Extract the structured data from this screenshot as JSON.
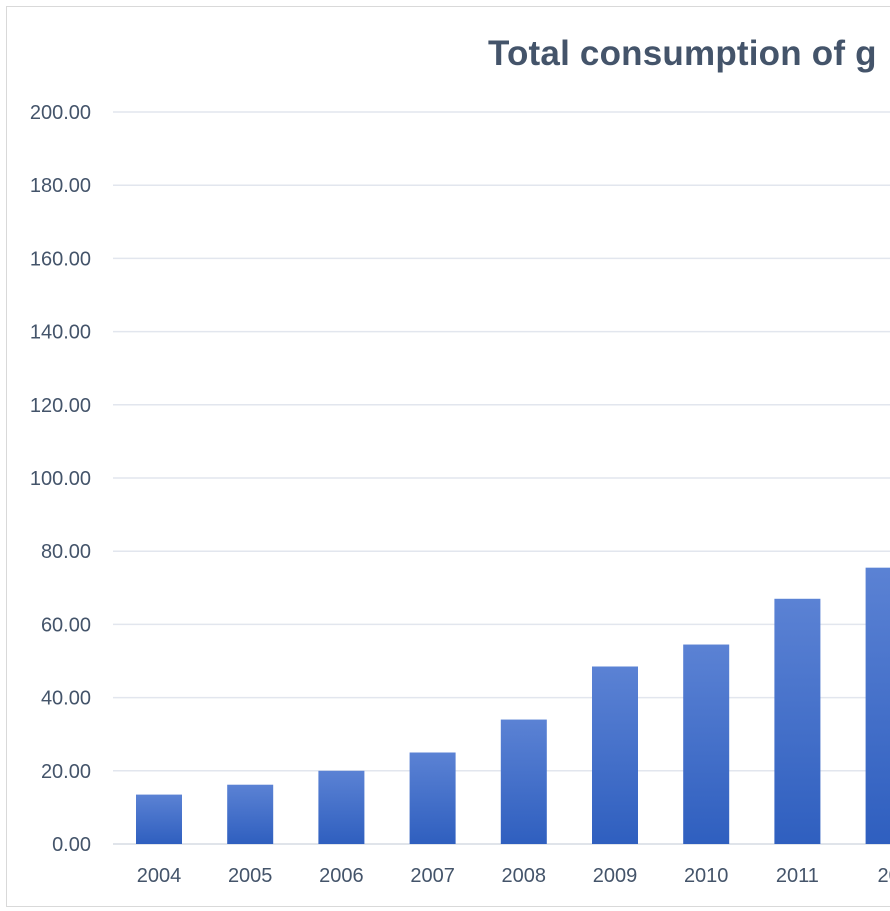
{
  "chart_data": {
    "type": "bar",
    "title": "Total consumption of g",
    "categories": [
      "2004",
      "2005",
      "2006",
      "2007",
      "2008",
      "2009",
      "2010",
      "2011",
      "20"
    ],
    "values": [
      13.5,
      16.2,
      20.0,
      25.0,
      34.0,
      48.5,
      54.5,
      67.0,
      75.5
    ],
    "ylim": [
      0,
      200
    ],
    "yticks": [
      "0.00",
      "20.00",
      "40.00",
      "60.00",
      "80.00",
      "100.00",
      "120.00",
      "140.00",
      "160.00",
      "180.00",
      "200.00"
    ],
    "grid": true,
    "bar_color_top": "#5b82d4",
    "bar_color_bottom": "#2f5fbf",
    "grid_color": "#e2e6ee",
    "text_color": "#44546a"
  }
}
